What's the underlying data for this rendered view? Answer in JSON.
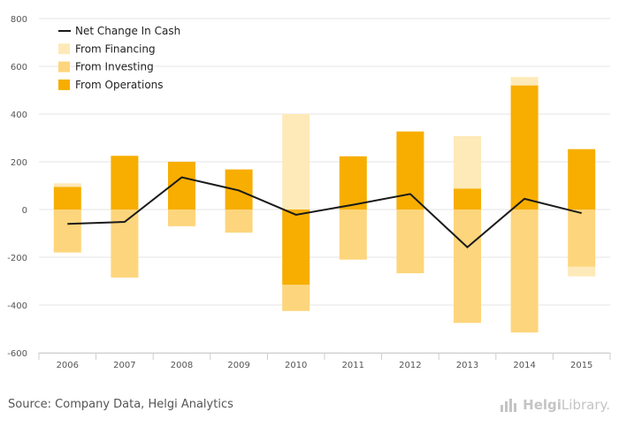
{
  "chart_data": {
    "type": "bar",
    "categories": [
      "2006",
      "2007",
      "2008",
      "2009",
      "2010",
      "2011",
      "2012",
      "2013",
      "2014",
      "2015"
    ],
    "series": [
      {
        "name": "From Operations",
        "kind": "bar",
        "color": "#f7ae00",
        "values": [
          95,
          225,
          200,
          168,
          -315,
          223,
          327,
          88,
          520,
          253
        ]
      },
      {
        "name": "From Investing",
        "kind": "bar",
        "color": "#fdd57c",
        "values": [
          -180,
          -285,
          -70,
          -97,
          -110,
          -210,
          -267,
          -475,
          -515,
          -240
        ]
      },
      {
        "name": "From Financing",
        "kind": "bar",
        "color": "#fee9b8",
        "values": [
          15,
          0,
          0,
          0,
          400,
          0,
          0,
          220,
          35,
          -40
        ]
      },
      {
        "name": "Net Change In Cash",
        "kind": "line",
        "color": "#1a1a1a",
        "values": [
          -60,
          -52,
          135,
          80,
          -22,
          20,
          65,
          -158,
          45,
          -15
        ]
      }
    ],
    "ylim": [
      -600,
      800
    ],
    "yticks": [
      -600,
      -400,
      -200,
      0,
      200,
      400,
      600,
      800
    ],
    "grid": true,
    "legend_position": "top-left",
    "xlabel": "",
    "ylabel": "",
    "title": ""
  },
  "legend": [
    {
      "label": "Net Change In Cash",
      "color": "#1a1a1a",
      "marker": "line"
    },
    {
      "label": "From Financing",
      "color": "#fee9b8",
      "marker": "box"
    },
    {
      "label": "From Investing",
      "color": "#fdd57c",
      "marker": "box"
    },
    {
      "label": "From Operations",
      "color": "#f7ae00",
      "marker": "box"
    }
  ],
  "footer": {
    "source": "Source: Company Data, Helgi Analytics",
    "brand_prefix": "Helgi",
    "brand_suffix": "Library."
  }
}
